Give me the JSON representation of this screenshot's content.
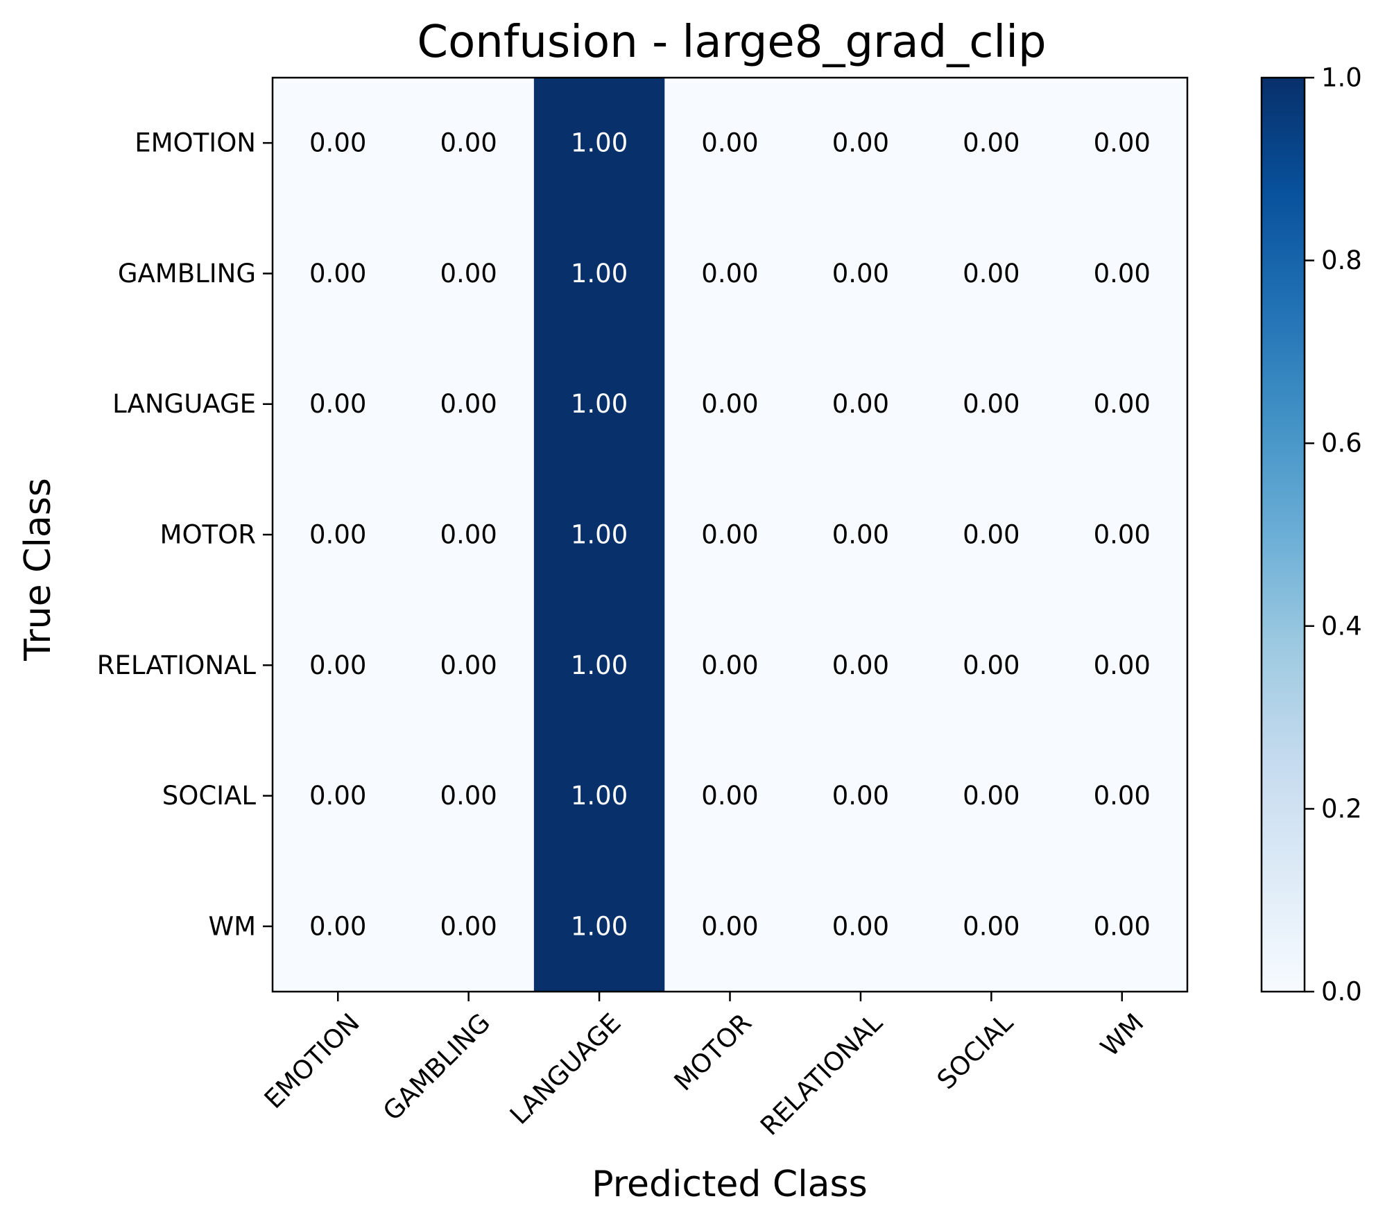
{
  "chart_data": {
    "type": "heatmap",
    "title": "Confusion - large8_grad_clip",
    "xlabel": "Predicted Class",
    "ylabel": "True Class",
    "x_categories": [
      "EMOTION",
      "GAMBLING",
      "LANGUAGE",
      "MOTOR",
      "RELATIONAL",
      "SOCIAL",
      "WM"
    ],
    "y_categories": [
      "EMOTION",
      "GAMBLING",
      "LANGUAGE",
      "MOTOR",
      "RELATIONAL",
      "SOCIAL",
      "WM"
    ],
    "values": [
      [
        0.0,
        0.0,
        1.0,
        0.0,
        0.0,
        0.0,
        0.0
      ],
      [
        0.0,
        0.0,
        1.0,
        0.0,
        0.0,
        0.0,
        0.0
      ],
      [
        0.0,
        0.0,
        1.0,
        0.0,
        0.0,
        0.0,
        0.0
      ],
      [
        0.0,
        0.0,
        1.0,
        0.0,
        0.0,
        0.0,
        0.0
      ],
      [
        0.0,
        0.0,
        1.0,
        0.0,
        0.0,
        0.0,
        0.0
      ],
      [
        0.0,
        0.0,
        1.0,
        0.0,
        0.0,
        0.0,
        0.0
      ],
      [
        0.0,
        0.0,
        1.0,
        0.0,
        0.0,
        0.0,
        0.0
      ]
    ],
    "value_format_decimals": 2,
    "colormap": "Blues",
    "colormap_low": "#f7fbff",
    "colormap_high": "#08306b",
    "colorbar": {
      "range": [
        0.0,
        1.0
      ],
      "ticks": [
        "0.0",
        "0.2",
        "0.4",
        "0.6",
        "0.8",
        "1.0"
      ]
    },
    "x_tick_rotation_deg": 45,
    "grid": false
  }
}
